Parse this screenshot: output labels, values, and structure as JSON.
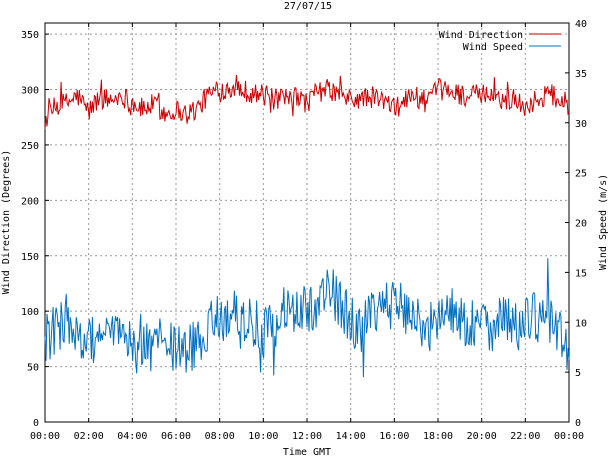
{
  "chart_data": {
    "type": "line",
    "title": "27/07/15",
    "xlabel": "Time GMT",
    "ylabel_left": "Wind Direction (Degrees)",
    "ylabel_right": "Wind Speed (m/s)",
    "x_ticks": [
      "00:00",
      "02:00",
      "04:00",
      "06:00",
      "08:00",
      "10:00",
      "12:00",
      "14:00",
      "16:00",
      "18:00",
      "20:00",
      "22:00",
      "00:00"
    ],
    "x_range_hours": [
      0,
      24
    ],
    "ylim_left": [
      0,
      360
    ],
    "yticks_left": [
      0,
      50,
      100,
      150,
      200,
      250,
      300,
      350
    ],
    "ylim_right": [
      0,
      40
    ],
    "yticks_right": [
      0,
      5,
      10,
      15,
      20,
      25,
      30,
      35,
      40
    ],
    "grid": true,
    "legend_position": "top-right",
    "colors": {
      "direction": "#cc0000",
      "speed": "#0070c0",
      "grid": "#999999"
    },
    "series": [
      {
        "name": "Wind Direction",
        "axis": "left",
        "x_hours": [
          0,
          0.5,
          1,
          1.5,
          2,
          2.5,
          3,
          3.5,
          4,
          4.5,
          5,
          5.5,
          6,
          6.5,
          7,
          7.5,
          8,
          8.5,
          9,
          9.5,
          10,
          10.5,
          11,
          11.5,
          12,
          12.5,
          13,
          13.5,
          14,
          14.5,
          15,
          15.5,
          16,
          16.5,
          17,
          17.5,
          18,
          18.5,
          19,
          19.5,
          20,
          20.5,
          21,
          21.5,
          22,
          22.5,
          23,
          23.5,
          24
        ],
        "values": [
          272,
          285,
          288,
          294,
          280,
          293,
          290,
          295,
          288,
          282,
          287,
          278,
          282,
          278,
          283,
          296,
          298,
          303,
          300,
          297,
          295,
          291,
          290,
          293,
          288,
          298,
          300,
          295,
          290,
          292,
          293,
          290,
          282,
          291,
          295,
          288,
          300,
          299,
          296,
          293,
          297,
          292,
          291,
          290,
          285,
          290,
          297,
          292,
          286
        ]
      },
      {
        "name": "Wind Speed",
        "axis": "right",
        "x_hours": [
          0,
          0.5,
          1,
          1.5,
          2,
          2.5,
          3,
          3.5,
          4,
          4.5,
          5,
          5.5,
          6,
          6.5,
          7,
          7.5,
          8,
          8.5,
          9,
          9.5,
          10,
          10.5,
          11,
          11.5,
          12,
          12.5,
          13,
          13.5,
          14,
          14.5,
          15,
          15.5,
          16,
          16.5,
          17,
          17.5,
          18,
          18.5,
          19,
          19.5,
          20,
          20.5,
          21,
          21.5,
          22,
          22.5,
          23,
          23.5,
          24
        ],
        "values": [
          8.5,
          9.2,
          10.5,
          8.1,
          7.8,
          9.0,
          8.4,
          8.8,
          7.5,
          7.1,
          7.9,
          8.4,
          7.2,
          6.9,
          8.1,
          9.5,
          10.4,
          11.2,
          9.8,
          10.1,
          8.9,
          9.4,
          11.5,
          10.8,
          11.1,
          12.2,
          13.4,
          11.8,
          10.2,
          9.6,
          10.5,
          11.2,
          12.1,
          11.4,
          10.2,
          9.3,
          10.6,
          11.1,
          10.4,
          9.8,
          10.2,
          9.6,
          10.8,
          9.4,
          9.9,
          10.5,
          10.2,
          9.1,
          7.5
        ]
      }
    ]
  }
}
